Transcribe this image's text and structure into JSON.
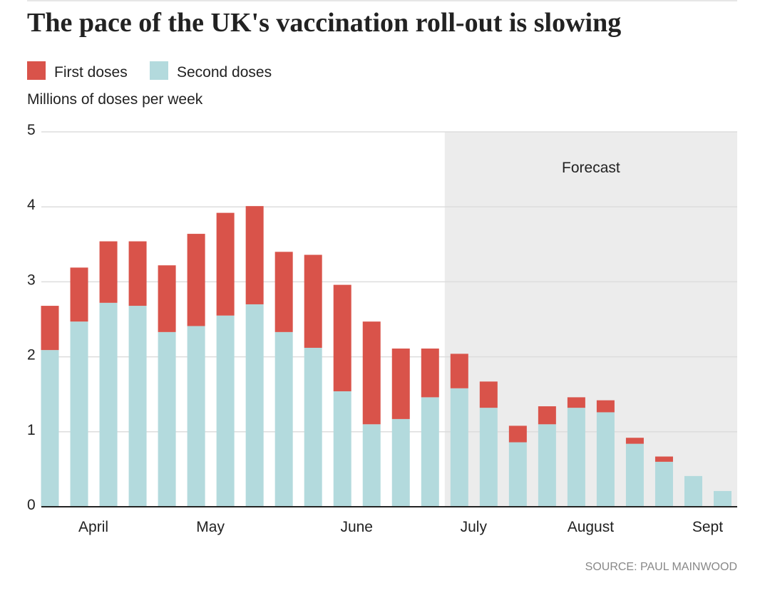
{
  "chart_data": {
    "type": "stacked_bar",
    "title": "The pace of the UK's vaccination roll-out is slowing",
    "y_label": "Millions of doses per week",
    "source": "SOURCE: PAUL MAINWOOD",
    "categories": [
      null,
      "April",
      null,
      null,
      null,
      "May",
      null,
      null,
      null,
      null,
      "June",
      null,
      null,
      null,
      "July",
      null,
      null,
      null,
      "August",
      null,
      null,
      null,
      "Sept",
      null
    ],
    "series": [
      {
        "name": "Second doses",
        "color": "#b3dadd",
        "values": [
          2.09,
          2.47,
          2.72,
          2.68,
          2.33,
          2.41,
          2.55,
          2.7,
          2.33,
          2.12,
          1.54,
          1.1,
          1.17,
          1.46,
          1.58,
          1.32,
          0.86,
          1.1,
          1.32,
          1.26,
          0.84,
          0.6,
          0.41,
          0.21
        ]
      },
      {
        "name": "First doses",
        "color": "#d9534a",
        "values": [
          0.59,
          0.72,
          0.82,
          0.86,
          0.89,
          1.23,
          1.37,
          1.31,
          1.07,
          1.24,
          1.42,
          1.37,
          0.94,
          0.65,
          0.46,
          0.35,
          0.22,
          0.24,
          0.14,
          0.16,
          0.08,
          0.07,
          0,
          0
        ]
      }
    ],
    "legend_order": [
      1,
      0
    ],
    "ylim": [
      0,
      5
    ],
    "yticks": [
      0,
      1,
      2,
      3,
      4,
      5
    ],
    "grid": true,
    "shaded_region": {
      "label": "Forecast",
      "from_category": 14,
      "color": "#ececec"
    }
  }
}
